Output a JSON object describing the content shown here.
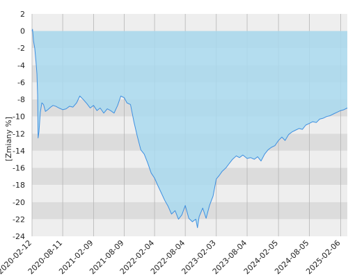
{
  "chart_data": {
    "type": "area",
    "title": "",
    "xlabel": "",
    "ylabel": "[Zmiany %]",
    "ylim": [
      -24,
      2
    ],
    "xlim": [
      "2020-02-12",
      "2025-03-17"
    ],
    "y_ticks": [
      2,
      0,
      -2,
      -4,
      -6,
      -8,
      -10,
      -12,
      -14,
      -16,
      -18,
      -20,
      -22,
      -24
    ],
    "x_ticks": [
      "2020-02-12",
      "2020-08-11",
      "2021-02-09",
      "2021-08-09",
      "2022-02-04",
      "2022-08-04",
      "2023-02-03",
      "2023-08-04",
      "2024-02-05",
      "2024-08-05",
      "2025-02-06"
    ],
    "grid": true,
    "legend": "none",
    "baseline": 0,
    "colors": {
      "line": "#3d8fe0",
      "fill": "#a9d9ee",
      "band_light": "#eeeeee",
      "band_dark": "#dcdcdc",
      "grid_vertical": "#b5b5b5"
    },
    "series": [
      {
        "x": [
          "2020-02-12",
          "2020-02-15",
          "2020-02-21",
          "2020-02-28",
          "2020-03-06",
          "2020-03-12",
          "2020-03-16",
          "2020-03-19",
          "2020-03-24",
          "2020-04-01",
          "2020-04-10",
          "2020-04-20",
          "2020-05-01",
          "2020-05-15",
          "2020-06-01",
          "2020-06-15",
          "2020-07-01",
          "2020-07-20",
          "2020-08-11",
          "2020-08-31",
          "2020-09-20",
          "2020-10-10",
          "2020-11-01",
          "2020-11-20",
          "2020-12-10",
          "2021-01-01",
          "2021-01-20",
          "2021-02-09",
          "2021-03-01",
          "2021-03-20",
          "2021-04-10",
          "2021-05-01",
          "2021-05-20",
          "2021-06-10",
          "2021-07-01",
          "2021-07-20",
          "2021-08-09",
          "2021-08-25",
          "2021-09-15",
          "2021-10-05",
          "2021-10-25",
          "2021-11-15",
          "2021-12-05",
          "2021-12-25",
          "2022-01-15",
          "2022-02-04",
          "2022-02-24",
          "2022-03-15",
          "2022-04-05",
          "2022-04-25",
          "2022-05-15",
          "2022-06-05",
          "2022-06-25",
          "2022-07-15",
          "2022-08-04",
          "2022-08-25",
          "2022-09-15",
          "2022-10-05",
          "2022-10-15",
          "2022-10-25",
          "2022-11-15",
          "2022-12-05",
          "2022-12-25",
          "2023-01-15",
          "2023-02-03",
          "2023-02-20",
          "2023-03-10",
          "2023-04-01",
          "2023-04-20",
          "2023-05-10",
          "2023-06-01",
          "2023-06-20",
          "2023-07-10",
          "2023-08-04",
          "2023-08-25",
          "2023-09-15",
          "2023-10-05",
          "2023-10-25",
          "2023-11-15",
          "2023-12-05",
          "2023-12-25",
          "2024-01-15",
          "2024-02-05",
          "2024-02-25",
          "2024-03-15",
          "2024-04-05",
          "2024-04-25",
          "2024-05-15",
          "2024-06-05",
          "2024-06-25",
          "2024-07-15",
          "2024-08-05",
          "2024-08-25",
          "2024-09-15",
          "2024-10-05",
          "2024-10-25",
          "2024-11-15",
          "2024-12-05",
          "2024-12-25",
          "2025-01-15",
          "2025-02-06",
          "2025-02-25",
          "2025-03-17"
        ],
        "y": [
          0.0,
          0.2,
          -1.2,
          -2.0,
          -3.5,
          -5.0,
          -7.5,
          -12.5,
          -11.8,
          -9.5,
          -8.4,
          -8.6,
          -9.4,
          -9.2,
          -8.9,
          -8.7,
          -8.8,
          -9.0,
          -9.2,
          -9.1,
          -8.8,
          -8.9,
          -8.4,
          -7.6,
          -8.0,
          -8.5,
          -9.0,
          -8.7,
          -9.3,
          -9.0,
          -9.6,
          -9.1,
          -9.3,
          -9.6,
          -8.7,
          -7.6,
          -7.8,
          -8.4,
          -8.6,
          -10.6,
          -12.3,
          -13.9,
          -14.4,
          -15.4,
          -16.6,
          -17.2,
          -18.1,
          -18.9,
          -19.8,
          -20.5,
          -21.4,
          -21.0,
          -22.0,
          -21.5,
          -20.4,
          -21.9,
          -22.3,
          -22.0,
          -23.0,
          -21.7,
          -20.7,
          -21.9,
          -20.4,
          -19.3,
          -17.3,
          -16.9,
          -16.4,
          -16.0,
          -15.5,
          -15.0,
          -14.6,
          -14.8,
          -14.5,
          -14.9,
          -14.8,
          -15.0,
          -14.7,
          -15.2,
          -14.4,
          -13.9,
          -13.6,
          -13.4,
          -12.8,
          -12.4,
          -12.8,
          -12.1,
          -11.8,
          -11.6,
          -11.4,
          -11.5,
          -11.0,
          -10.8,
          -10.6,
          -10.7,
          -10.3,
          -10.2,
          -10.0,
          -9.9,
          -9.7,
          -9.5,
          -9.3,
          -9.2,
          -9.0
        ]
      }
    ]
  }
}
